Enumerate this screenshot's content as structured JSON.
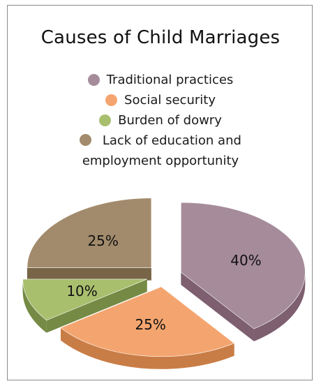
{
  "chart_data": {
    "type": "pie",
    "title": "Causes of Child Marriages",
    "exploded": true,
    "style": "3d",
    "legend_position": "top",
    "categories": [
      "Traditional practices",
      "Social security",
      "Burden of dowry",
      "Lack of education and employment opportunity"
    ],
    "values": [
      40,
      25,
      10,
      25
    ],
    "data_labels": [
      "40%",
      "25%",
      "10%",
      "25%"
    ],
    "colors": [
      "#a68c9b",
      "#f4a56f",
      "#a8bf6e",
      "#a28b6c"
    ],
    "side_colors": [
      "#7d5f70",
      "#c97d46",
      "#758a44",
      "#786447"
    ]
  },
  "legend": {
    "items": [
      {
        "label": "Traditional practices"
      },
      {
        "label": "Social security"
      },
      {
        "label": "Burden of dowry"
      },
      {
        "label_line1": "Lack of education and",
        "label_line2": "employment opportunity"
      }
    ]
  }
}
